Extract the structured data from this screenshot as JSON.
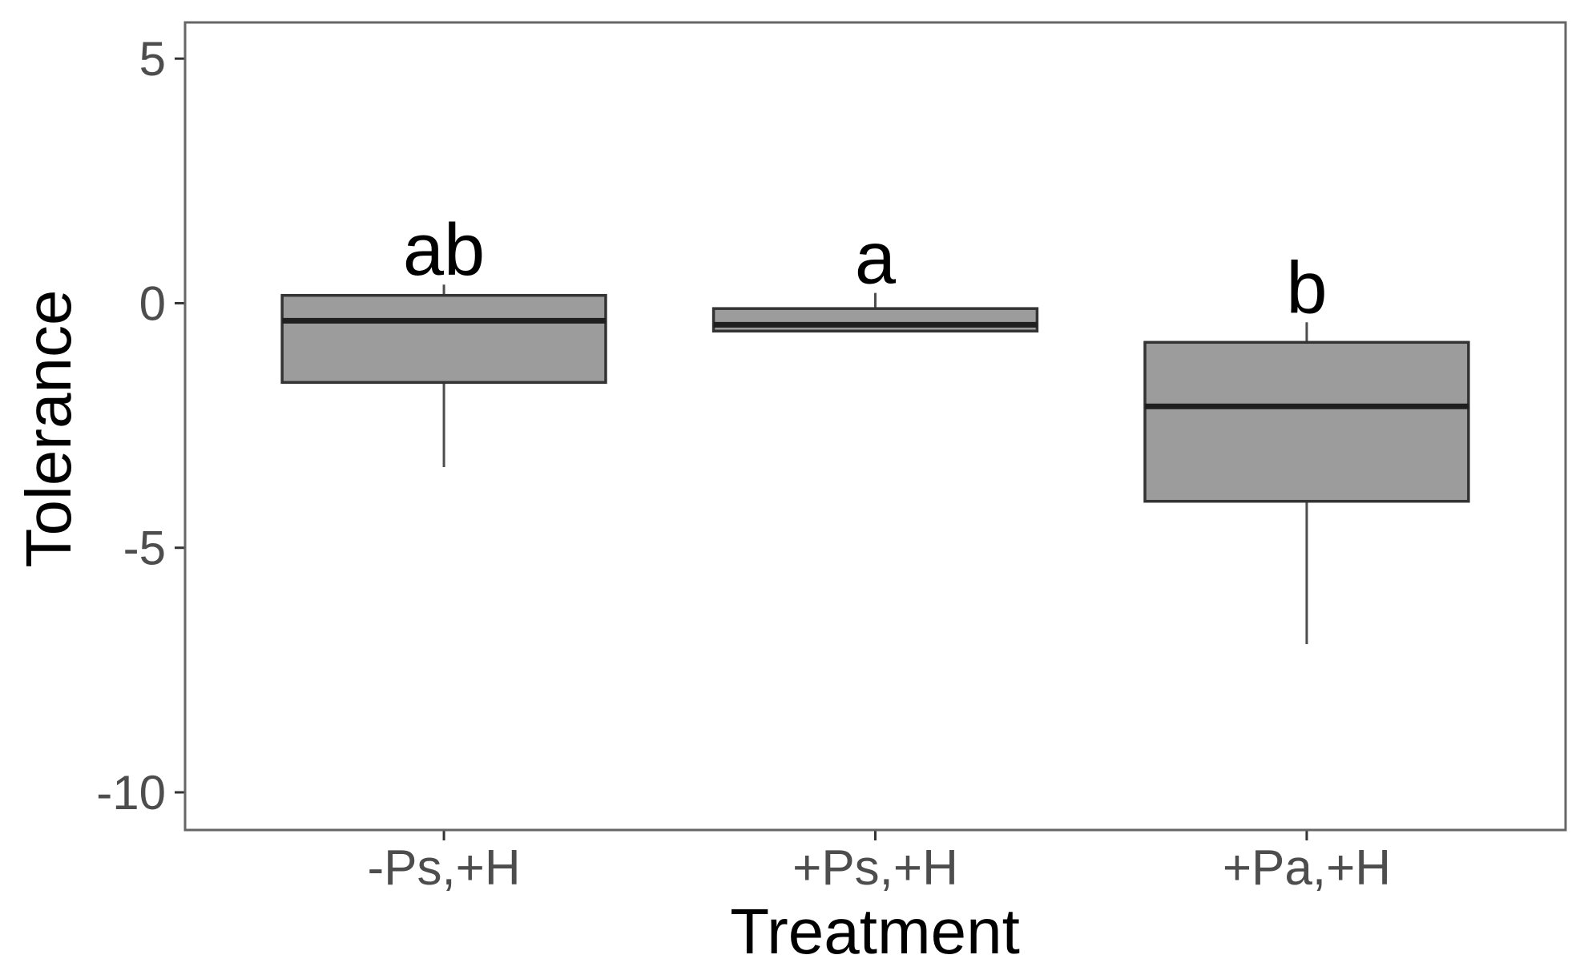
{
  "chart_data": {
    "type": "boxplot",
    "title": "",
    "xlabel": "Treatment",
    "ylabel": "Tolerance",
    "categories": [
      "-Ps,+H",
      "+Ps,+H",
      "+Pa,+H"
    ],
    "significance_letters": [
      "ab",
      "a",
      "b"
    ],
    "series": [
      {
        "category": "-Ps,+H",
        "letter": "ab",
        "whisker_low": -3.35,
        "q1": -1.62,
        "median": -0.36,
        "q3": 0.16,
        "whisker_high": 0.38
      },
      {
        "category": "+Ps,+H",
        "letter": "a",
        "whisker_low": -0.57,
        "q1": -0.57,
        "median": -0.44,
        "q3": -0.11,
        "whisker_high": 0.21
      },
      {
        "category": "+Pa,+H",
        "letter": "b",
        "whisker_low": -6.97,
        "q1": -4.05,
        "median": -2.11,
        "q3": -0.8,
        "whisker_high": -0.39
      }
    ],
    "y_ticks": [
      5,
      0,
      -5,
      -10
    ],
    "ylim": [
      -10.77,
      5.74
    ],
    "grid": false,
    "legend": "none",
    "colors": {
      "box_fill": "#9c9c9c",
      "box_stroke": "#333333",
      "median_stroke": "#1f1f1f",
      "whisker_stroke": "#4d4d4d",
      "panel_border": "#666666",
      "tick_mark": "#333333",
      "tick_label": "#4d4d4d",
      "axis_title": "#000000",
      "sig_letter": "#000000",
      "background": "#ffffff"
    }
  }
}
